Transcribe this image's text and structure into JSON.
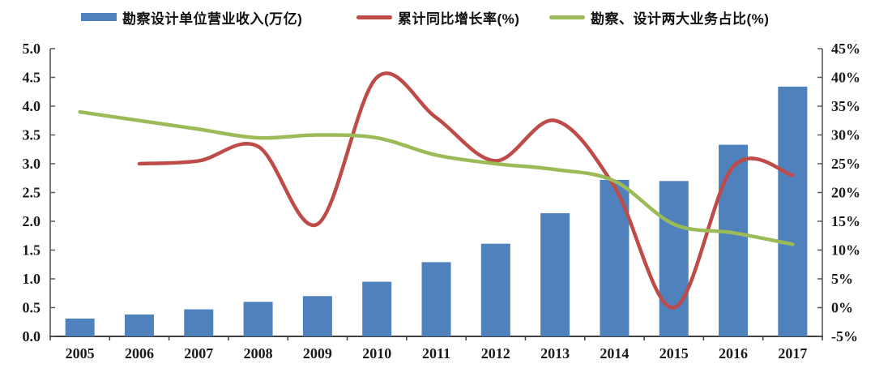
{
  "colors": {
    "bar": "#4F81BD",
    "growth_line": "#BE4B48",
    "share_line": "#9BBB59",
    "axis_line": "#595959",
    "text": "#1a1a1a"
  },
  "legend": [
    {
      "label": "勘察设计单位营业收入(万亿)",
      "swatch": "bar",
      "color": "#4F81BD"
    },
    {
      "label": "累计同比增长率(%)",
      "swatch": "line",
      "color": "#BE4B48"
    },
    {
      "label": "勘察、设计两大业务占比(%)",
      "swatch": "line",
      "color": "#9BBB59"
    }
  ],
  "chart_data": {
    "type": "combo-bar-line",
    "title": "",
    "categories": [
      "2005",
      "2006",
      "2007",
      "2008",
      "2009",
      "2010",
      "2011",
      "2012",
      "2013",
      "2014",
      "2015",
      "2016",
      "2017"
    ],
    "series": [
      {
        "name": "勘察设计单位营业收入(万亿)",
        "type": "bar",
        "axis": "left",
        "color": "#4F81BD",
        "values": [
          0.31,
          0.38,
          0.47,
          0.6,
          0.7,
          0.95,
          1.29,
          1.61,
          2.14,
          2.72,
          2.7,
          3.33,
          4.34
        ]
      },
      {
        "name": "累计同比增长率(%)",
        "type": "line",
        "axis": "right",
        "color": "#BE4B48",
        "values": [
          null,
          25,
          25.5,
          28,
          14.5,
          40,
          33,
          25.5,
          32.5,
          21,
          0,
          24.5,
          23
        ]
      },
      {
        "name": "勘察、设计两大业务占比(%)",
        "type": "line",
        "axis": "right",
        "color": "#9BBB59",
        "values": [
          34,
          32.5,
          31,
          29.5,
          30,
          29.5,
          26.5,
          25,
          24,
          22,
          14.5,
          13,
          11
        ]
      }
    ],
    "left_axis": {
      "min": 0,
      "max": 5,
      "step": 0.5,
      "tick_labels": [
        "5.0",
        "4.5",
        "4.0",
        "3.5",
        "3.0",
        "2.5",
        "2.0",
        "1.5",
        "1.0",
        "0.5",
        "0.0"
      ]
    },
    "right_axis": {
      "min": -5,
      "max": 45,
      "step": 5,
      "tick_labels": [
        "45%",
        "40%",
        "35%",
        "30%",
        "25%",
        "20%",
        "15%",
        "10%",
        "5%",
        "0%",
        "-5%"
      ]
    },
    "grid": false,
    "legend_position": "top"
  }
}
